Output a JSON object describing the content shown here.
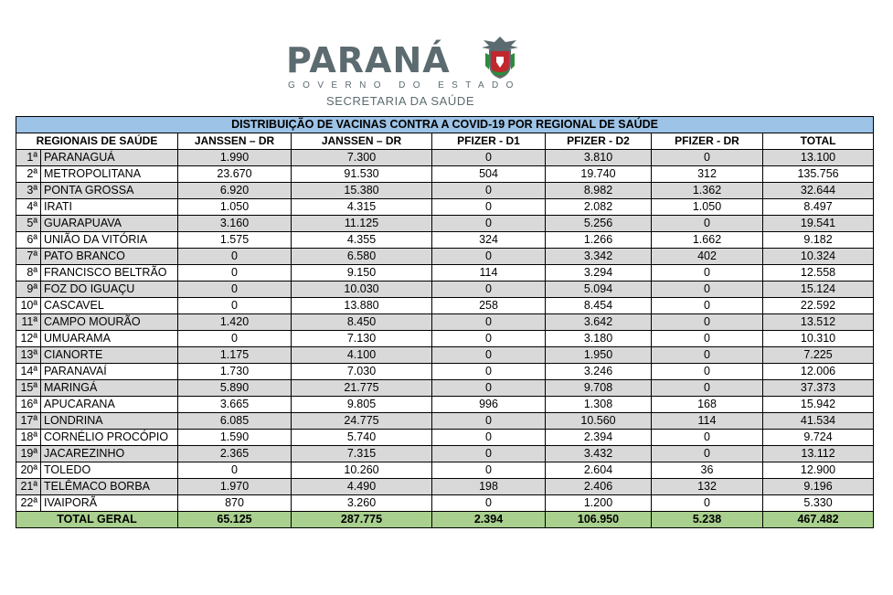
{
  "header": {
    "logo_word": "PARANÁ",
    "logo_sub": "GOVERNO DO ESTADO",
    "logo_secretaria": "SECRETARIA DA SAÚDE"
  },
  "table": {
    "title": "DISTRIBUIÇÃO DE VACINAS CONTRA A COVID-19 POR REGIONAL DE SAÚDE",
    "columns": [
      "REGIONAIS DE SAÚDE",
      "JANSSEN – DR",
      "JANSSEN – DR",
      "PFIZER - D1",
      "PFIZER - D2",
      "PFIZER - DR",
      "TOTAL"
    ],
    "rows": [
      {
        "num": "1ª",
        "name": "PARANAGUÁ",
        "values": [
          "1.990",
          "7.300",
          "0",
          "3.810",
          "0",
          "13.100"
        ]
      },
      {
        "num": "2ª",
        "name": "METROPOLITANA",
        "values": [
          "23.670",
          "91.530",
          "504",
          "19.740",
          "312",
          "135.756"
        ]
      },
      {
        "num": "3ª",
        "name": "PONTA GROSSA",
        "values": [
          "6.920",
          "15.380",
          "0",
          "8.982",
          "1.362",
          "32.644"
        ]
      },
      {
        "num": "4ª",
        "name": "IRATI",
        "values": [
          "1.050",
          "4.315",
          "0",
          "2.082",
          "1.050",
          "8.497"
        ]
      },
      {
        "num": "5ª",
        "name": "GUARAPUAVA",
        "values": [
          "3.160",
          "11.125",
          "0",
          "5.256",
          "0",
          "19.541"
        ]
      },
      {
        "num": "6ª",
        "name": "UNIÃO DA VITÓRIA",
        "values": [
          "1.575",
          "4.355",
          "324",
          "1.266",
          "1.662",
          "9.182"
        ]
      },
      {
        "num": "7ª",
        "name": "PATO BRANCO",
        "values": [
          "0",
          "6.580",
          "0",
          "3.342",
          "402",
          "10.324"
        ]
      },
      {
        "num": "8ª",
        "name": "FRANCISCO BELTRÃO",
        "values": [
          "0",
          "9.150",
          "114",
          "3.294",
          "0",
          "12.558"
        ]
      },
      {
        "num": "9ª",
        "name": "FOZ DO IGUAÇU",
        "values": [
          "0",
          "10.030",
          "0",
          "5.094",
          "0",
          "15.124"
        ]
      },
      {
        "num": "10ª",
        "name": "CASCAVEL",
        "values": [
          "0",
          "13.880",
          "258",
          "8.454",
          "0",
          "22.592"
        ]
      },
      {
        "num": "11ª",
        "name": "CAMPO MOURÃO",
        "values": [
          "1.420",
          "8.450",
          "0",
          "3.642",
          "0",
          "13.512"
        ]
      },
      {
        "num": "12ª",
        "name": "UMUARAMA",
        "values": [
          "0",
          "7.130",
          "0",
          "3.180",
          "0",
          "10.310"
        ]
      },
      {
        "num": "13ª",
        "name": "CIANORTE",
        "values": [
          "1.175",
          "4.100",
          "0",
          "1.950",
          "0",
          "7.225"
        ]
      },
      {
        "num": "14ª",
        "name": "PARANAVAÍ",
        "values": [
          "1.730",
          "7.030",
          "0",
          "3.246",
          "0",
          "12.006"
        ]
      },
      {
        "num": "15ª",
        "name": "MARINGÁ",
        "values": [
          "5.890",
          "21.775",
          "0",
          "9.708",
          "0",
          "37.373"
        ]
      },
      {
        "num": "16ª",
        "name": "APUCARANA",
        "values": [
          "3.665",
          "9.805",
          "996",
          "1.308",
          "168",
          "15.942"
        ]
      },
      {
        "num": "17ª",
        "name": "LONDRINA",
        "values": [
          "6.085",
          "24.775",
          "0",
          "10.560",
          "114",
          "41.534"
        ]
      },
      {
        "num": "18ª",
        "name": "CORNÉLIO PROCÓPIO",
        "values": [
          "1.590",
          "5.740",
          "0",
          "2.394",
          "0",
          "9.724"
        ]
      },
      {
        "num": "19ª",
        "name": "JACAREZINHO",
        "values": [
          "2.365",
          "7.315",
          "0",
          "3.432",
          "0",
          "13.112"
        ]
      },
      {
        "num": "20ª",
        "name": "TOLEDO",
        "values": [
          "0",
          "10.260",
          "0",
          "2.604",
          "36",
          "12.900"
        ]
      },
      {
        "num": "21ª",
        "name": "TELÊMACO BORBA",
        "values": [
          "1.970",
          "4.490",
          "198",
          "2.406",
          "132",
          "9.196"
        ]
      },
      {
        "num": "22ª",
        "name": "IVAIPORÃ",
        "values": [
          "870",
          "3.260",
          "0",
          "1.200",
          "0",
          "5.330"
        ]
      }
    ],
    "total": {
      "label": "TOTAL GERAL",
      "values": [
        "65.125",
        "287.775",
        "2.394",
        "106.950",
        "5.238",
        "467.482"
      ]
    }
  },
  "colors": {
    "title_bg": "#9dc3e6",
    "row_shade": "#d9d9d9",
    "total_bg": "#a9d08e",
    "logo_gray": "#5b6b70",
    "crest_red": "#c0282e",
    "crest_green": "#2e8b3e"
  }
}
